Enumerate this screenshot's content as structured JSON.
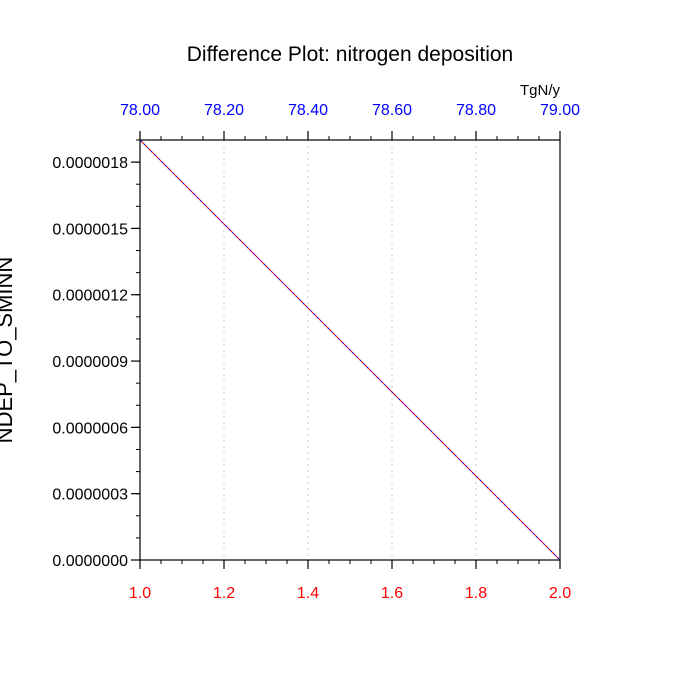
{
  "chart_data": {
    "type": "line",
    "title": "Difference Plot: nitrogen deposition",
    "ylabel": "NDEP_TO_SMINN",
    "top_axis_units": "TgN/y",
    "x": [
      1.0,
      2.0
    ],
    "xlim": [
      1.0,
      2.0
    ],
    "ylim": [
      0.0,
      1.9e-06
    ],
    "x_ticks": [
      {
        "value": 1.0,
        "label": "1.0"
      },
      {
        "value": 1.2,
        "label": "1.2"
      },
      {
        "value": 1.4,
        "label": "1.4"
      },
      {
        "value": 1.6,
        "label": "1.6"
      },
      {
        "value": 1.8,
        "label": "1.8"
      },
      {
        "value": 2.0,
        "label": "2.0"
      }
    ],
    "top_x_ticks": [
      {
        "value": 78.0,
        "label": "78.00"
      },
      {
        "value": 78.2,
        "label": "78.20"
      },
      {
        "value": 78.4,
        "label": "78.40"
      },
      {
        "value": 78.6,
        "label": "78.60"
      },
      {
        "value": 78.8,
        "label": "78.80"
      },
      {
        "value": 79.0,
        "label": "79.00"
      }
    ],
    "top_xlim": [
      78.0,
      79.0
    ],
    "y_ticks": [
      {
        "value": 0.0,
        "label": "0.0000000"
      },
      {
        "value": 3e-07,
        "label": "0.0000003"
      },
      {
        "value": 6e-07,
        "label": "0.0000006"
      },
      {
        "value": 9e-07,
        "label": "0.0000009"
      },
      {
        "value": 1.2e-06,
        "label": "0.0000012"
      },
      {
        "value": 1.5e-06,
        "label": "0.0000015"
      },
      {
        "value": 1.8e-06,
        "label": "0.0000018"
      }
    ],
    "series": [
      {
        "values": [
          1.9e-06,
          0.0
        ],
        "color": "#0000ff",
        "style": "dashed"
      },
      {
        "values": [
          1.9e-06,
          0.0
        ],
        "color": "#ff0000",
        "style": "dashed"
      }
    ],
    "grid": "vertical dotted",
    "colors": {
      "bottom_ticks": "#ff0000",
      "top_ticks": "#0000ff",
      "grid": "#c8c8c8",
      "frame": "#000000"
    }
  }
}
